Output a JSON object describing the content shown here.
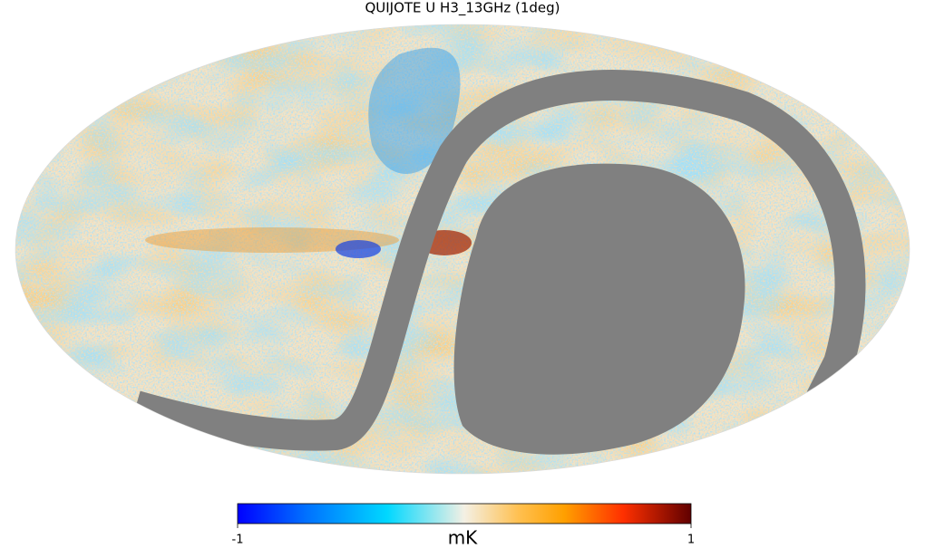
{
  "title": "QUIJOTE U H3_13GHz (1deg)",
  "colorbar": {
    "label": "mK",
    "lim": [
      -1,
      1
    ],
    "ticks": [
      -1,
      1
    ]
  }
}
